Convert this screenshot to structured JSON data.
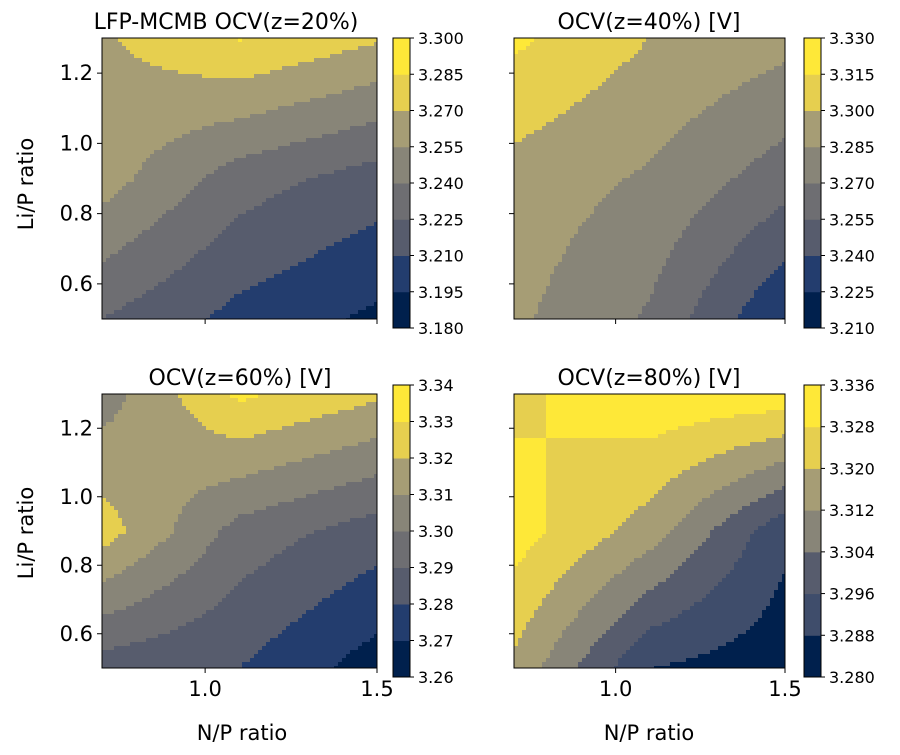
{
  "figure": {
    "xlabel": "N/P ratio",
    "ylabel": "Li/P ratio",
    "colormap": [
      "#00204d",
      "#233d6e",
      "#3f4d6b",
      "#575c6d",
      "#6e6e72",
      "#888578",
      "#a69d75",
      "#c6b66a",
      "#e6cf4f",
      "#fee838"
    ]
  },
  "chart_data": [
    {
      "type": "heatmap",
      "title": "LFP-MCMB OCV(z=20%)",
      "xlim": [
        0.7,
        1.5
      ],
      "ylim": [
        0.5,
        1.3
      ],
      "xticks": [
        "1.0",
        "1.5"
      ],
      "yticks": [
        "0.6",
        "0.8",
        "1.0",
        "1.2"
      ],
      "levels": [
        "3.180",
        "3.195",
        "3.210",
        "3.225",
        "3.240",
        "3.255",
        "3.270",
        "3.285",
        "3.300"
      ],
      "grid": {
        "x": [
          0.7,
          1.1,
          1.5
        ],
        "y": [
          0.5,
          0.9,
          1.3
        ],
        "z": [
          [
            3.225,
            3.205,
            3.192
          ],
          [
            3.262,
            3.232,
            3.218
          ],
          [
            3.268,
            3.286,
            3.272
          ]
        ]
      }
    },
    {
      "type": "heatmap",
      "title": "OCV(z=40%) [V]",
      "xlim": [
        0.7,
        1.5
      ],
      "ylim": [
        0.5,
        1.3
      ],
      "xticks": [
        "1.0",
        "1.5"
      ],
      "yticks": [],
      "levels": [
        "3.210",
        "3.225",
        "3.240",
        "3.255",
        "3.270",
        "3.285",
        "3.300",
        "3.315",
        "3.330"
      ],
      "grid": {
        "x": [
          0.7,
          1.1,
          1.5
        ],
        "y": [
          0.5,
          0.9,
          1.3
        ],
        "z": [
          [
            3.288,
            3.268,
            3.224
          ],
          [
            3.294,
            3.283,
            3.262
          ],
          [
            3.318,
            3.3,
            3.29
          ]
        ]
      }
    },
    {
      "type": "heatmap",
      "title": "OCV(z=60%) [V]",
      "xlim": [
        0.7,
        1.5
      ],
      "ylim": [
        0.5,
        1.3
      ],
      "xticks": [
        "1.0",
        "1.5"
      ],
      "yticks": [
        "0.6",
        "0.8",
        "1.0",
        "1.2"
      ],
      "levels": [
        "3.26",
        "3.27",
        "3.28",
        "3.29",
        "3.30",
        "3.31",
        "3.32",
        "3.33",
        "3.34"
      ],
      "grid": {
        "x": [
          0.7,
          1.1,
          1.5
        ],
        "y": [
          0.5,
          0.9,
          1.3
        ],
        "z": [
          [
            3.285,
            3.28,
            3.265
          ],
          [
            3.325,
            3.296,
            3.285
          ],
          [
            3.305,
            3.332,
            3.322
          ]
        ]
      }
    },
    {
      "type": "heatmap",
      "title": "OCV(z=80%) [V]",
      "xlim": [
        0.7,
        1.5
      ],
      "ylim": [
        0.5,
        1.3
      ],
      "xticks": [
        "1.0",
        "1.5"
      ],
      "yticks": [],
      "levels": [
        "3.280",
        "3.288",
        "3.296",
        "3.304",
        "3.312",
        "3.320",
        "3.328",
        "3.336"
      ],
      "grid": {
        "x": [
          0.7,
          1.1,
          1.5
        ],
        "y": [
          0.5,
          0.9,
          1.3
        ],
        "z": [
          [
            3.318,
            3.288,
            3.283
          ],
          [
            3.332,
            3.316,
            3.29
          ],
          [
            3.326,
            3.334,
            3.333
          ]
        ]
      }
    }
  ]
}
